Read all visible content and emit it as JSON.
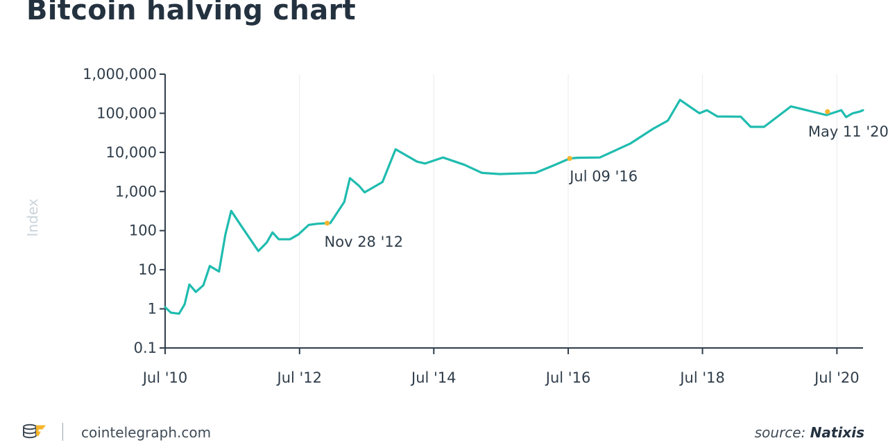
{
  "title": "Bitcoin halving chart",
  "footer": {
    "site": "cointelegraph.com",
    "source_prefix": "source:",
    "source_name": "Natixis"
  },
  "colors": {
    "line": "#1fbcaf",
    "halving_marker": "#f6b52c",
    "grid": "#e6eaed",
    "axis": "#2f3d4a",
    "title": "#243240"
  },
  "chart_data": {
    "type": "line",
    "title": "Bitcoin halving chart",
    "xlabel": "",
    "ylabel": "Index",
    "y_scale": "log",
    "ylim": [
      0.1,
      1000000
    ],
    "xlim": [
      "2010-07-01",
      "2020-11-20"
    ],
    "grid": true,
    "y_ticks": [
      "0.1",
      "1",
      "10",
      "100",
      "1,000",
      "10,000",
      "100,000",
      "1,000,000"
    ],
    "y_tick_values": [
      0.1,
      1,
      10,
      100,
      1000,
      10000,
      100000,
      1000000
    ],
    "x_ticks": [
      "Jul '10",
      "Jul '12",
      "Jul '14",
      "Jul '16",
      "Jul '18",
      "Jul '20"
    ],
    "x_tick_dates": [
      "2010-07-01",
      "2012-07-01",
      "2014-07-01",
      "2016-07-01",
      "2018-07-01",
      "2020-07-01"
    ],
    "series": [
      {
        "points": [
          [
            "2010-07-01",
            1.1
          ],
          [
            "2010-08-01",
            0.8
          ],
          [
            "2010-09-15",
            0.75
          ],
          [
            "2010-10-15",
            1.3
          ],
          [
            "2010-11-10",
            4.2
          ],
          [
            "2010-12-15",
            2.7
          ],
          [
            "2011-01-25",
            4.0
          ],
          [
            "2011-03-01",
            12.5
          ],
          [
            "2011-04-20",
            9.0
          ],
          [
            "2011-05-25",
            80
          ],
          [
            "2011-06-25",
            320
          ],
          [
            "2011-08-20",
            130
          ],
          [
            "2011-11-20",
            30
          ],
          [
            "2012-01-05",
            50
          ],
          [
            "2012-02-05",
            90
          ],
          [
            "2012-03-10",
            60
          ],
          [
            "2012-05-10",
            60
          ],
          [
            "2012-06-25",
            80
          ],
          [
            "2012-08-20",
            140
          ],
          [
            "2012-10-05",
            150
          ],
          [
            "2012-11-28",
            155
          ],
          [
            "2012-12-15",
            155
          ],
          [
            "2013-03-01",
            540
          ],
          [
            "2013-04-01",
            2200
          ],
          [
            "2013-05-20",
            1400
          ],
          [
            "2013-06-20",
            950
          ],
          [
            "2013-09-25",
            1750
          ],
          [
            "2013-12-05",
            12000
          ],
          [
            "2014-04-01",
            5800
          ],
          [
            "2014-05-15",
            5200
          ],
          [
            "2014-08-20",
            7400
          ],
          [
            "2014-12-15",
            4800
          ],
          [
            "2015-03-20",
            3000
          ],
          [
            "2015-06-25",
            2800
          ],
          [
            "2016-01-05",
            3000
          ],
          [
            "2016-04-15",
            4700
          ],
          [
            "2016-07-09",
            7000
          ],
          [
            "2016-08-20",
            7300
          ],
          [
            "2016-12-20",
            7400
          ],
          [
            "2017-06-05",
            17000
          ],
          [
            "2017-10-05",
            40000
          ],
          [
            "2017-12-25",
            65000
          ],
          [
            "2018-03-01",
            220000
          ],
          [
            "2018-05-10",
            130000
          ],
          [
            "2018-06-15",
            100000
          ],
          [
            "2018-07-25",
            120000
          ],
          [
            "2018-09-20",
            83000
          ],
          [
            "2019-01-25",
            82000
          ],
          [
            "2019-03-20",
            45000
          ],
          [
            "2019-06-01",
            45000
          ],
          [
            "2019-10-25",
            150000
          ],
          [
            "2020-05-05",
            90000
          ],
          [
            "2020-07-25",
            120000
          ],
          [
            "2020-08-20",
            80000
          ],
          [
            "2020-09-25",
            100000
          ],
          [
            "2020-11-01",
            110000
          ],
          [
            "2020-11-20",
            120000
          ]
        ]
      }
    ],
    "annotations": [
      {
        "label": "Nov 28 '12",
        "date": "2012-11-28",
        "value": 155
      },
      {
        "label": "Jul 09 '16",
        "date": "2016-07-09",
        "value": 7000
      },
      {
        "label": "May 11 '20",
        "date": "2020-05-11",
        "value": 110000
      }
    ]
  }
}
